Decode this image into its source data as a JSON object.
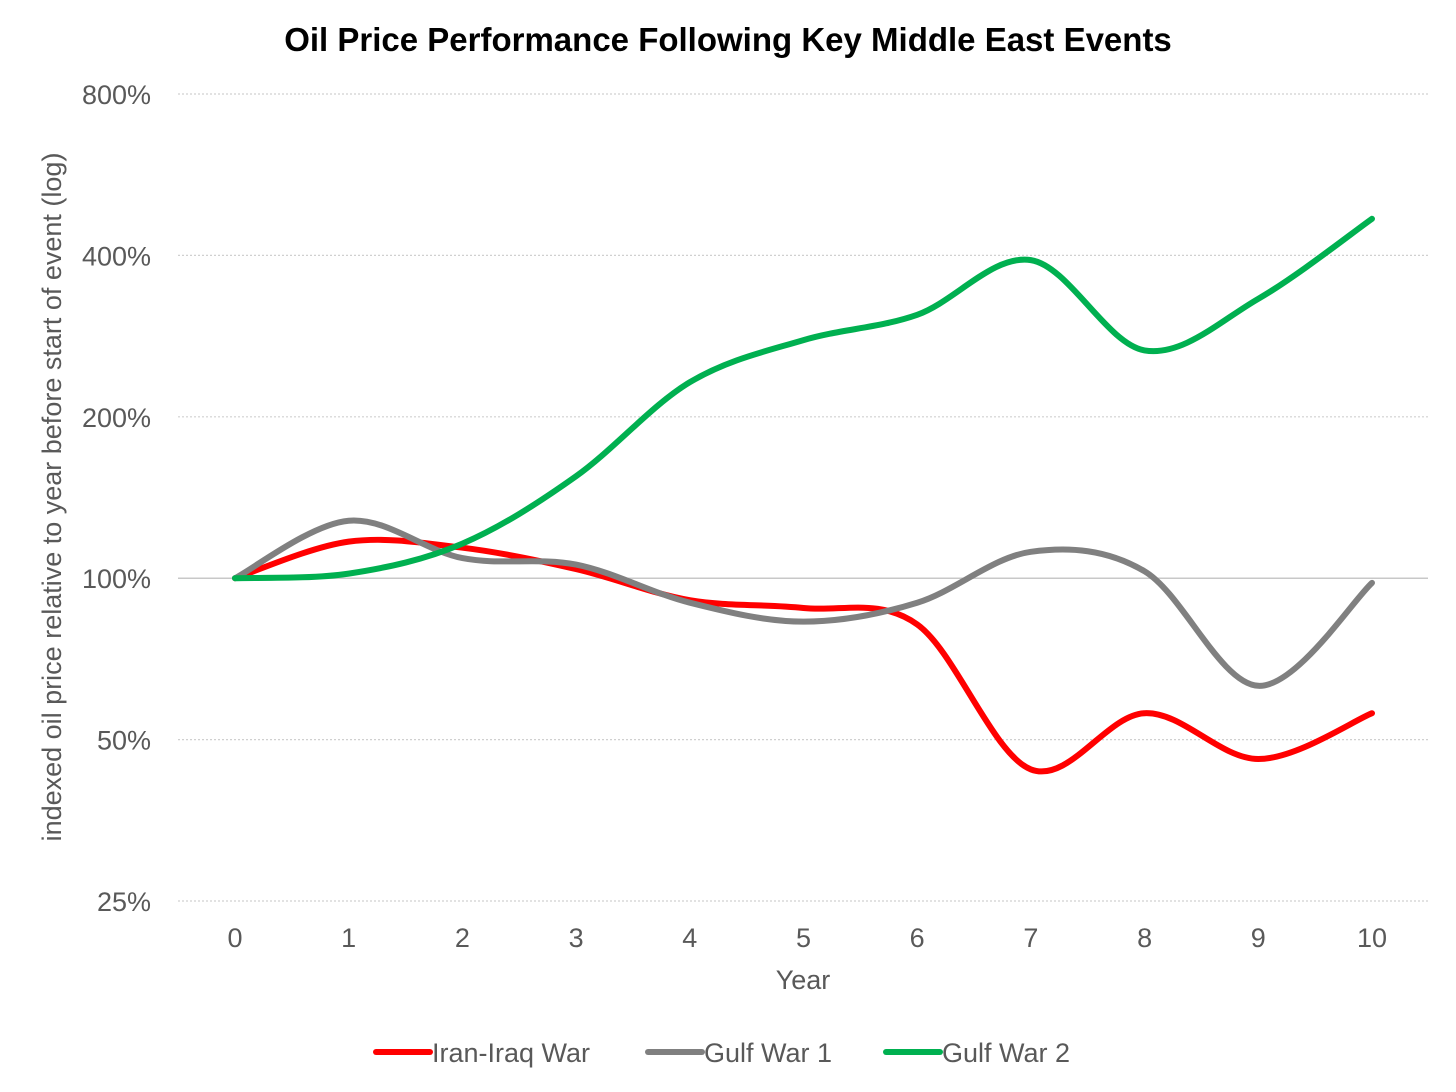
{
  "chart_data": {
    "type": "line",
    "title": "Oil Price Performance Following Key Middle East Events",
    "xlabel": "Year",
    "ylabel": "indexed oil price relative to year before start of event (log)",
    "y_scale": "log2",
    "ylim": [
      25,
      800
    ],
    "xlim": [
      0,
      10
    ],
    "y_ticks": [
      25,
      50,
      100,
      200,
      400,
      800
    ],
    "y_tick_labels": [
      "25%",
      "50%",
      "100%",
      "200%",
      "400%",
      "800%"
    ],
    "x": [
      0,
      1,
      2,
      3,
      4,
      5,
      6,
      7,
      8,
      9,
      10
    ],
    "x_tick_labels": [
      "0",
      "1",
      "2",
      "3",
      "4",
      "5",
      "6",
      "7",
      "8",
      "9",
      "10"
    ],
    "grid": true,
    "legend_position": "bottom",
    "series": [
      {
        "name": "Iran-Iraq War",
        "color": "#ff0000",
        "values": [
          100,
          117,
          114,
          104,
          91,
          88,
          82,
          44,
          56,
          46,
          56
        ]
      },
      {
        "name": "Gulf War 1",
        "color": "#808080",
        "values": [
          100,
          128,
          109,
          106,
          90,
          83,
          90,
          112,
          103,
          63,
          98
        ]
      },
      {
        "name": "Gulf War 2",
        "color": "#00b050",
        "values": [
          100,
          102,
          116,
          155,
          232,
          278,
          310,
          392,
          266,
          332,
          468
        ]
      }
    ]
  }
}
